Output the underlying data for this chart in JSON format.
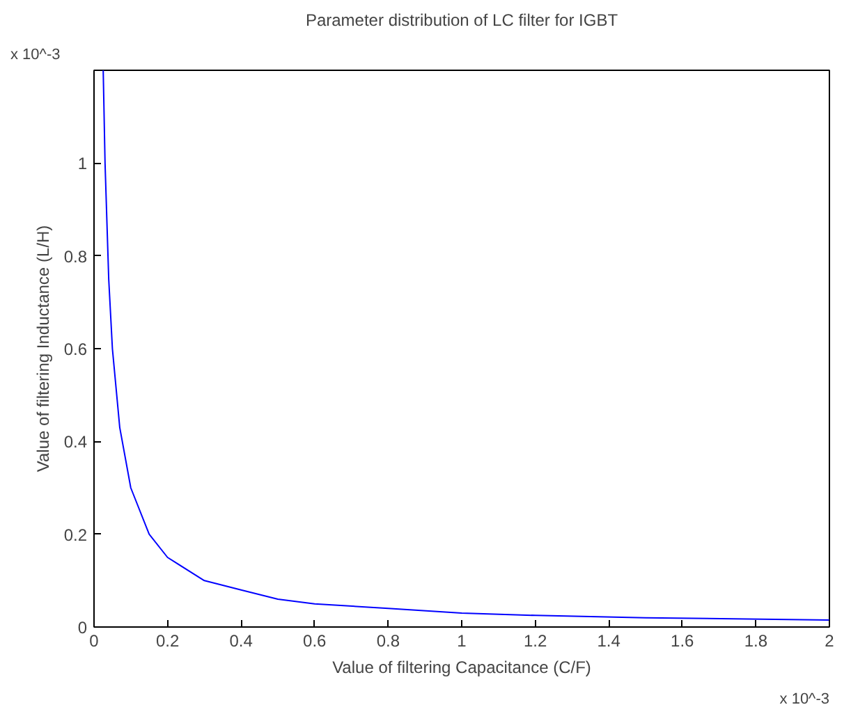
{
  "chart_data": {
    "type": "line",
    "title": "Parameter distribution of LC filter for IGBT",
    "xlabel": "Value of filtering Capacitance (C/F)",
    "ylabel": "Value of filtering Inductance (L/H)",
    "x": [
      0.025,
      0.03,
      0.04,
      0.05,
      0.07,
      0.1,
      0.15,
      0.2,
      0.3,
      0.4,
      0.5,
      0.6,
      0.8,
      1.0,
      1.2,
      1.5,
      2.0
    ],
    "series": [
      {
        "color": "#0000ff",
        "values": [
          1.2,
          1.0,
          0.75,
          0.6,
          0.43,
          0.3,
          0.2,
          0.15,
          0.1,
          0.08,
          0.06,
          0.05,
          0.04,
          0.03,
          0.025,
          0.02,
          0.015
        ]
      }
    ],
    "xlim": [
      0,
      2
    ],
    "ylim": [
      0,
      1.2
    ],
    "xticks": [
      0,
      0.2,
      0.4,
      0.6,
      0.8,
      1,
      1.2,
      1.4,
      1.6,
      1.8,
      2
    ],
    "yticks": [
      0,
      0.2,
      0.4,
      0.6,
      0.8,
      1
    ],
    "annotations": [
      "x 10^-3",
      "x 10^-3"
    ],
    "grid": false,
    "line_style": "solid"
  }
}
